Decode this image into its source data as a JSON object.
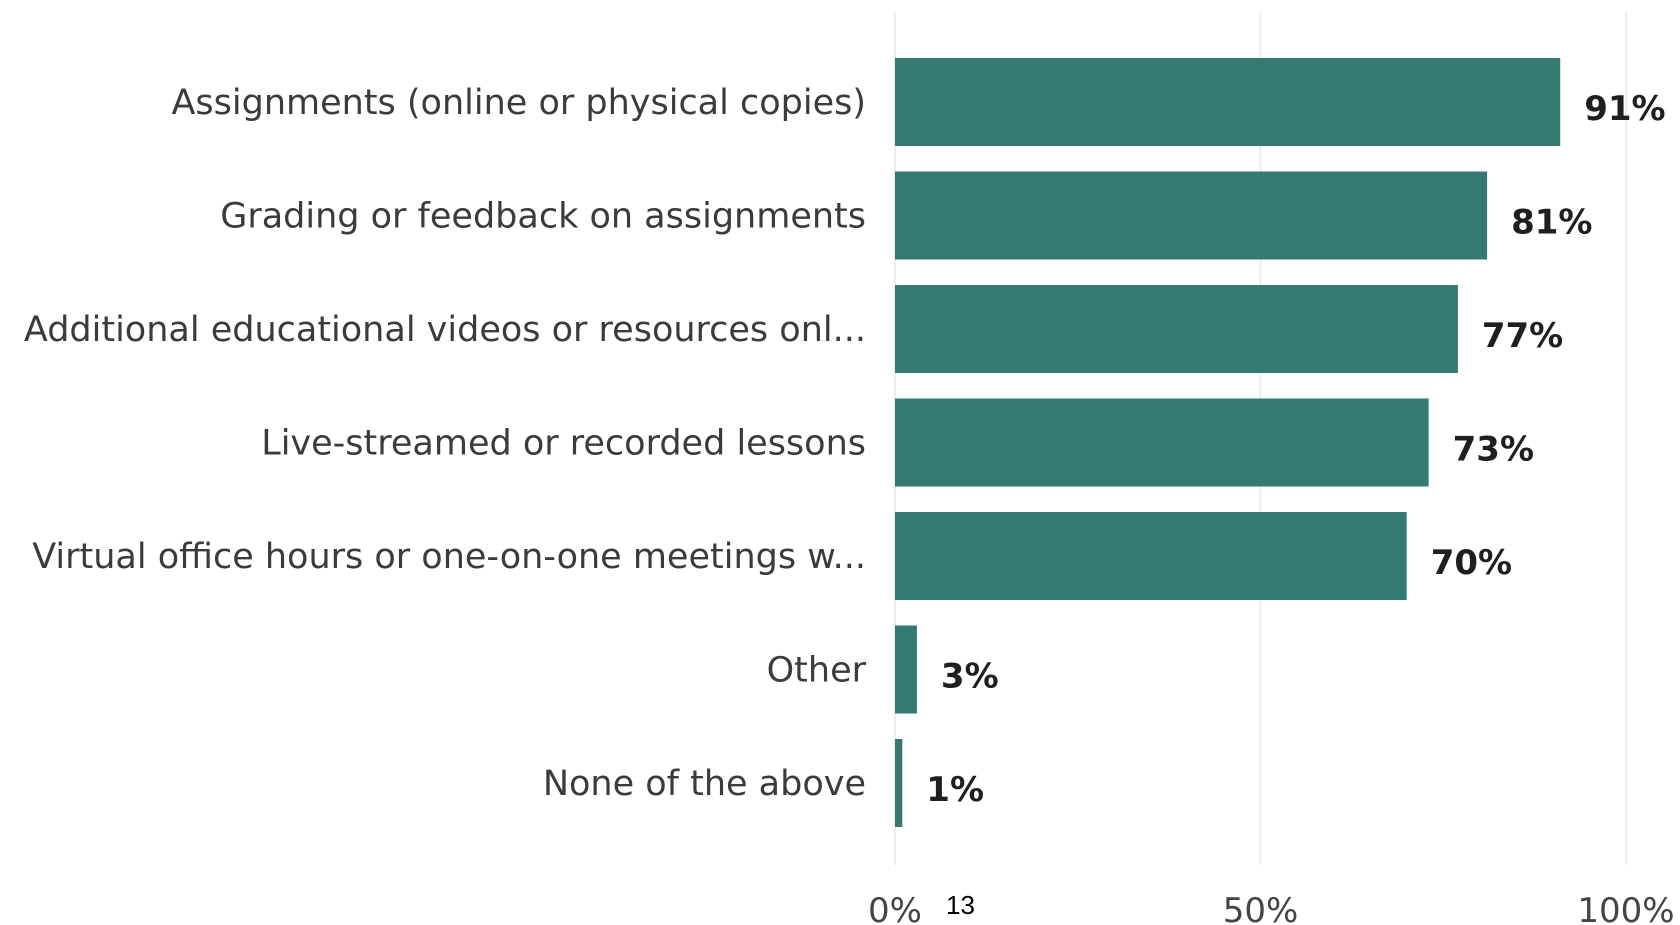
{
  "chart_data": {
    "type": "bar",
    "orientation": "horizontal",
    "categories": [
      "Assignments (online or physical copies)",
      "Grading or feedback on assignments",
      "Additional educational videos or resources onl...",
      "Live-streamed or recorded lessons",
      "Virtual office hours or one-on-one meetings w...",
      "Other",
      "None of the above"
    ],
    "values": [
      91,
      81,
      77,
      73,
      70,
      3,
      1
    ],
    "value_labels": [
      "91%",
      "81%",
      "77%",
      "73%",
      "70%",
      "3%",
      "1%"
    ],
    "xlim": [
      0,
      100
    ],
    "x_ticks": [
      0,
      50,
      100
    ],
    "x_tick_labels": [
      "0%",
      "50%",
      "100%"
    ],
    "grid": "vertical",
    "bar_color": "#347a70"
  },
  "footer": {
    "page_number": "13"
  }
}
